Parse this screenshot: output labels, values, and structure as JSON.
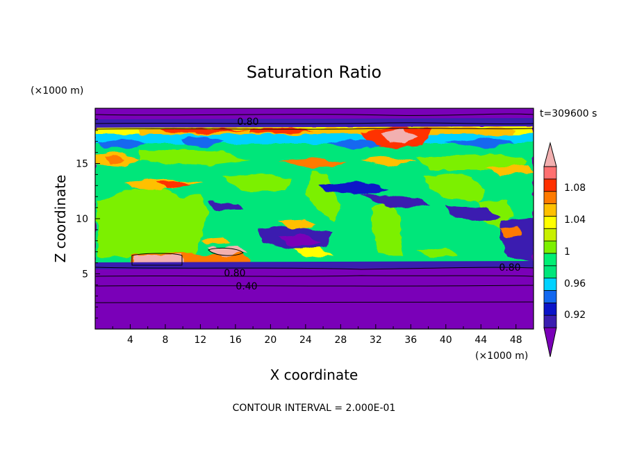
{
  "chart_data": {
    "type": "heatmap",
    "title": "Saturation Ratio",
    "xlabel": "X coordinate",
    "ylabel": "Z coordinate",
    "x_unit": "(×1000 m)",
    "y_unit": "(×1000 m)",
    "time_label": "t=309600 s",
    "footer": "CONTOUR INTERVAL = 2.000E-01",
    "xlim": [
      0,
      50
    ],
    "ylim": [
      0,
      20
    ],
    "x_ticks": [
      "4",
      "8",
      "12",
      "16",
      "20",
      "24",
      "28",
      "32",
      "36",
      "40",
      "44",
      "48"
    ],
    "y_ticks": [
      "5",
      "10",
      "15"
    ],
    "colorbar": {
      "labels": [
        "1.08",
        "1.04",
        "1",
        "0.96",
        "0.92"
      ],
      "colors": [
        "#7a00b8",
        "#3a1eb0",
        "#0a14c8",
        "#1268f0",
        "#00d2ff",
        "#00e67a",
        "#00ef74",
        "#7cf000",
        "#c8f000",
        "#ffff00",
        "#ffc000",
        "#ff7a00",
        "#ff3000",
        "#ff7070",
        "#f2b0b0"
      ],
      "extend": "both"
    },
    "contour_labels": [
      "0.80",
      "0.80",
      "0.40",
      "0.80"
    ],
    "grid": false,
    "legend": "colorbar-right"
  }
}
